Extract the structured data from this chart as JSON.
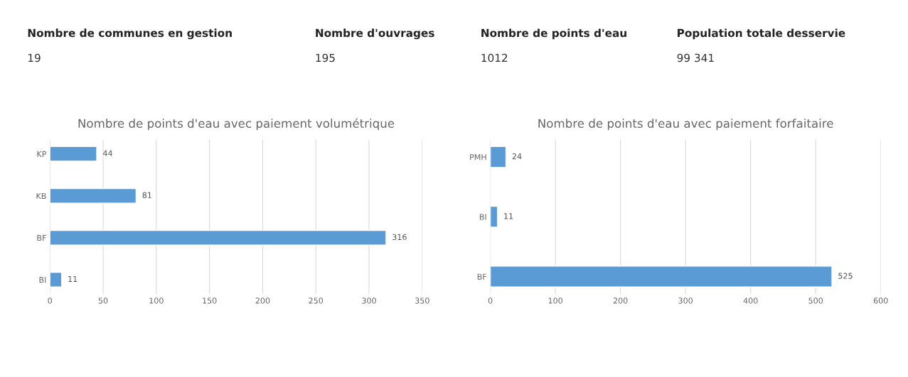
{
  "chart_data": [
    {
      "type": "other",
      "annotations": [
        "Nombre de communes en gestion",
        "19",
        "Nombre d'ouvrages",
        "195",
        "Nombre de points d'eau",
        "1012",
        "Population totale desservie",
        "99 341"
      ]
    },
    {
      "type": "bar",
      "orientation": "horizontal",
      "title": "Nombre de points d'eau avec paiement volumétrique",
      "categories": [
        "KP",
        "KB",
        "BF",
        "BI"
      ],
      "values": [
        44,
        81,
        316,
        11
      ],
      "color": "#5b9bd5",
      "xlim": [
        0,
        350
      ],
      "xticks": [
        0,
        50,
        100,
        150,
        200,
        250,
        300,
        350
      ],
      "grid": "x",
      "data_labels": true
    },
    {
      "type": "bar",
      "orientation": "horizontal",
      "title": "Nombre de points d'eau avec paiement forfaitaire",
      "categories": [
        "PMH",
        "BI",
        "BF"
      ],
      "values": [
        24,
        11,
        525
      ],
      "color": "#5b9bd5",
      "xlim": [
        0,
        600
      ],
      "xticks": [
        0,
        100,
        200,
        300,
        400,
        500,
        600
      ],
      "grid": "x",
      "data_labels": true
    }
  ]
}
